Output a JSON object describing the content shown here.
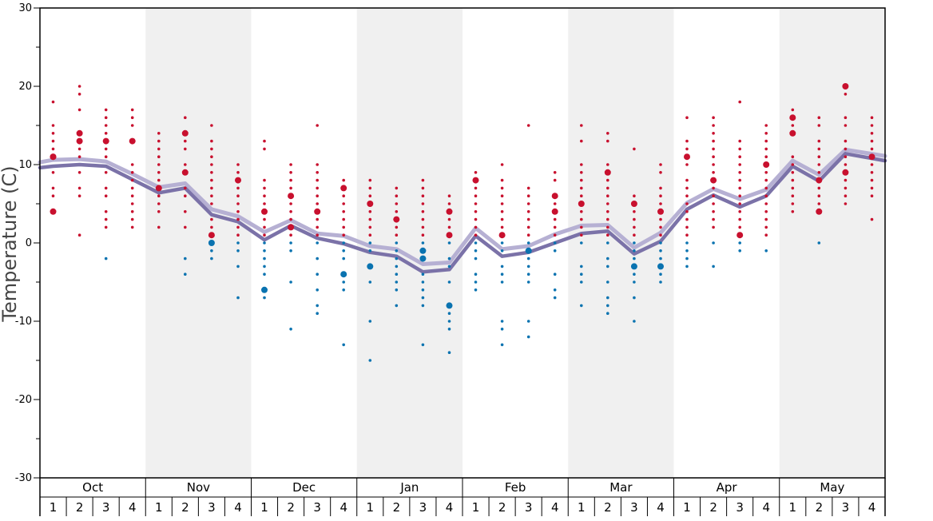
{
  "colors": {
    "warm_dot": "#c8102e",
    "cold_dot": "#0a73b0",
    "avg_max_line": "#b6b0d3",
    "avg_min_line": "#7b72a8",
    "shaded_band": "#f0f0f0",
    "axis": "#000000"
  },
  "chart_data": {
    "type": "scatter",
    "title": "",
    "ylabel": "Temperature (C)",
    "xlabel": "",
    "ylim": [
      -30,
      30
    ],
    "yticks": [
      -30,
      -20,
      -10,
      0,
      10,
      20,
      30
    ],
    "grid": false,
    "months": [
      "Oct",
      "Nov",
      "Dec",
      "Jan",
      "Feb",
      "Mar",
      "Apr",
      "May"
    ],
    "weeks": [
      "1",
      "2",
      "3",
      "4"
    ],
    "shaded_months": [
      "Nov",
      "Jan",
      "Mar",
      "May"
    ],
    "series": [
      {
        "name": "",
        "kind": "line",
        "role": "upper",
        "values": [
          10.3,
          10.6,
          10.7,
          10.4,
          8.8,
          7.1,
          7.6,
          4.3,
          3.4,
          1.4,
          2.9,
          1.2,
          0.9,
          -0.4,
          -0.8,
          -2.7,
          -2.5,
          1.9,
          -0.8,
          -0.4,
          1.1,
          2.2,
          2.3,
          -0.6,
          1.3,
          5.1,
          6.9,
          5.6,
          6.8,
          10.5,
          8.7,
          11.9,
          11.1
        ]
      },
      {
        "name": "",
        "kind": "line",
        "role": "lower",
        "values": [
          9.6,
          9.8,
          10.0,
          9.8,
          8.1,
          6.4,
          7.0,
          3.6,
          2.7,
          0.4,
          2.2,
          0.6,
          -0.1,
          -1.2,
          -1.7,
          -3.7,
          -3.4,
          0.9,
          -1.7,
          -1.2,
          0.0,
          1.2,
          1.5,
          -1.4,
          0.2,
          4.3,
          6.1,
          4.6,
          6.0,
          9.8,
          7.9,
          11.4,
          10.5
        ]
      }
    ],
    "dots": [
      {
        "col": 0,
        "values": [
          18,
          15,
          14,
          13,
          12,
          11,
          11,
          9,
          7,
          6,
          4
        ],
        "large": [
          11,
          4
        ]
      },
      {
        "col": 1,
        "values": [
          20,
          19,
          17,
          14,
          13,
          12,
          11,
          9,
          7,
          6,
          1
        ],
        "large": [
          14,
          13
        ]
      },
      {
        "col": 2,
        "values": [
          17,
          16,
          15,
          14,
          13,
          12,
          11,
          9,
          7,
          6,
          4,
          3,
          2,
          -2
        ],
        "large": [
          13
        ]
      },
      {
        "col": 3,
        "values": [
          17,
          16,
          15,
          13,
          10,
          9,
          8,
          7,
          6,
          5,
          4,
          3,
          2
        ],
        "large": [
          13
        ]
      },
      {
        "col": 4,
        "values": [
          14,
          13,
          12,
          11,
          10,
          9,
          8,
          7,
          6,
          5,
          4,
          2
        ],
        "large": [
          7
        ]
      },
      {
        "col": 5,
        "values": [
          16,
          14,
          13,
          12,
          10,
          9,
          7,
          6,
          4,
          2,
          -2,
          -4
        ],
        "large": [
          14,
          9
        ]
      },
      {
        "col": 6,
        "values": [
          15,
          13,
          12,
          11,
          10,
          9,
          8,
          7,
          6,
          5,
          3,
          2,
          1,
          0,
          -1,
          -2
        ],
        "large": [
          1,
          0
        ]
      },
      {
        "col": 7,
        "values": [
          10,
          9,
          8,
          7,
          6,
          5,
          4,
          3,
          2,
          1,
          0,
          -1,
          -3,
          -7
        ],
        "large": [
          8
        ]
      },
      {
        "col": 8,
        "values": [
          13,
          12,
          8,
          7,
          6,
          5,
          4,
          3,
          2,
          1,
          0,
          -1,
          -2,
          -3,
          -4,
          -6,
          -7
        ],
        "large": [
          4,
          -6
        ]
      },
      {
        "col": 9,
        "values": [
          10,
          9,
          8,
          7,
          6,
          5,
          4,
          3,
          2,
          1,
          0,
          -1,
          -5,
          -11
        ],
        "large": [
          6,
          2
        ]
      },
      {
        "col": 10,
        "values": [
          15,
          10,
          9,
          8,
          7,
          6,
          5,
          4,
          3,
          2,
          1,
          0,
          -2,
          -4,
          -6,
          -8,
          -9
        ],
        "large": [
          4
        ]
      },
      {
        "col": 11,
        "values": [
          8,
          7,
          6,
          5,
          4,
          3,
          2,
          1,
          0,
          -1,
          -2,
          -4,
          -5,
          -6,
          -13
        ],
        "large": [
          7,
          -4
        ]
      },
      {
        "col": 12,
        "values": [
          8,
          7,
          6,
          5,
          4,
          3,
          2,
          1,
          0,
          -1,
          -3,
          -5,
          -10,
          -15
        ],
        "large": [
          5,
          -3
        ]
      },
      {
        "col": 13,
        "values": [
          7,
          6,
          5,
          4,
          3,
          2,
          1,
          0,
          -1,
          -2,
          -3,
          -4,
          -5,
          -6,
          -8
        ],
        "large": [
          3
        ]
      },
      {
        "col": 14,
        "values": [
          8,
          7,
          6,
          5,
          4,
          3,
          2,
          1,
          0,
          -1,
          -2,
          -4,
          -5,
          -6,
          -7,
          -8,
          -13
        ],
        "large": [
          -1,
          -2
        ]
      },
      {
        "col": 15,
        "values": [
          6,
          5,
          4,
          3,
          2,
          1,
          0,
          -2,
          -3,
          -5,
          -8,
          -9,
          -10,
          -11,
          -14
        ],
        "large": [
          4,
          1,
          -8
        ]
      },
      {
        "col": 16,
        "values": [
          9,
          8,
          7,
          6,
          5,
          4,
          3,
          2,
          1,
          0,
          -1,
          -2,
          -4,
          -5,
          -6
        ],
        "large": [
          8
        ]
      },
      {
        "col": 17,
        "values": [
          10,
          8,
          7,
          6,
          5,
          4,
          3,
          2,
          1,
          0,
          -1,
          -3,
          -4,
          -5,
          -10,
          -11,
          -13
        ],
        "large": [
          1
        ]
      },
      {
        "col": 18,
        "values": [
          15,
          7,
          6,
          5,
          4,
          3,
          2,
          1,
          0,
          -1,
          -2,
          -3,
          -4,
          -5,
          -10,
          -12
        ],
        "large": [
          -1
        ]
      },
      {
        "col": 19,
        "values": [
          9,
          8,
          6,
          5,
          4,
          3,
          2,
          1,
          0,
          -1,
          -4,
          -6,
          -7
        ],
        "large": [
          6,
          4
        ]
      },
      {
        "col": 20,
        "values": [
          15,
          13,
          10,
          9,
          8,
          7,
          6,
          5,
          4,
          3,
          2,
          1,
          0,
          -3,
          -4,
          -5,
          -8
        ],
        "large": [
          5
        ]
      },
      {
        "col": 21,
        "values": [
          14,
          13,
          10,
          9,
          8,
          7,
          6,
          5,
          4,
          3,
          2,
          1,
          0,
          -2,
          -3,
          -5,
          -7,
          -8,
          -9
        ],
        "large": [
          9
        ]
      },
      {
        "col": 22,
        "values": [
          12,
          6,
          5,
          4,
          3,
          2,
          1,
          0,
          -1,
          -2,
          -3,
          -4,
          -5,
          -7,
          -10
        ],
        "large": [
          5,
          -3
        ]
      },
      {
        "col": 23,
        "values": [
          10,
          9,
          7,
          6,
          5,
          4,
          3,
          2,
          1,
          0,
          -1,
          -2,
          -3,
          -4,
          -5
        ],
        "large": [
          4,
          -3
        ]
      },
      {
        "col": 24,
        "values": [
          16,
          13,
          12,
          11,
          10,
          8,
          7,
          6,
          5,
          4,
          3,
          2,
          1,
          0,
          -1,
          -2,
          -3
        ],
        "large": [
          11
        ]
      },
      {
        "col": 25,
        "values": [
          16,
          15,
          14,
          13,
          12,
          11,
          10,
          9,
          8,
          7,
          6,
          5,
          4,
          3,
          2,
          0,
          -3
        ],
        "large": [
          8
        ]
      },
      {
        "col": 26,
        "values": [
          18,
          13,
          12,
          11,
          10,
          9,
          8,
          7,
          6,
          5,
          4,
          3,
          2,
          1,
          0,
          -1
        ],
        "large": [
          1
        ]
      },
      {
        "col": 27,
        "values": [
          15,
          14,
          13,
          12,
          11,
          10,
          9,
          8,
          7,
          6,
          5,
          4,
          3,
          2,
          1,
          -1
        ],
        "large": [
          10
        ]
      },
      {
        "col": 28,
        "values": [
          17,
          16,
          15,
          14,
          11,
          10,
          9,
          8,
          7,
          6,
          5,
          4
        ],
        "large": [
          16,
          14
        ]
      },
      {
        "col": 29,
        "values": [
          16,
          15,
          13,
          12,
          11,
          10,
          9,
          8,
          7,
          6,
          5,
          4,
          0
        ],
        "large": [
          8,
          4
        ]
      },
      {
        "col": 30,
        "values": [
          20,
          19,
          16,
          15,
          13,
          12,
          11,
          10,
          9,
          8,
          7,
          6,
          5
        ],
        "large": [
          20,
          9
        ]
      },
      {
        "col": 31,
        "values": [
          16,
          15,
          14,
          13,
          12,
          11,
          10,
          9,
          8,
          7,
          6,
          3
        ],
        "large": [
          11
        ]
      }
    ]
  }
}
